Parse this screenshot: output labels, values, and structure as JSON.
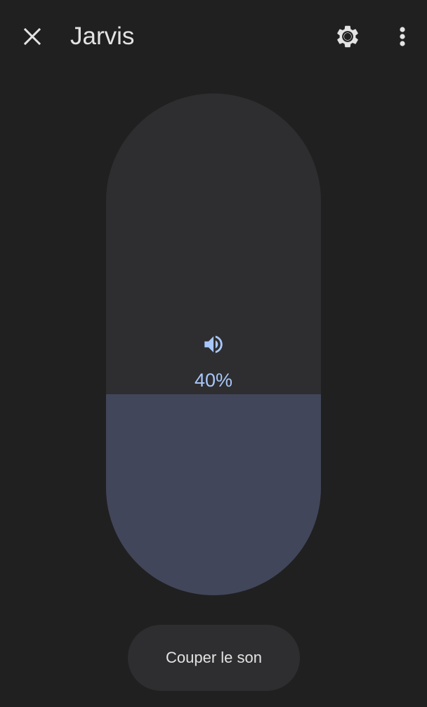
{
  "header": {
    "title": "Jarvis",
    "close_icon": "close-icon",
    "settings_icon": "gear-icon",
    "more_icon": "more-vert-icon"
  },
  "volume": {
    "level": 40,
    "label": "40%",
    "icon": "volume-up-icon"
  },
  "actions": {
    "mute_label": "Couper le son"
  },
  "colors": {
    "background": "#202021",
    "track": "#2e2e30",
    "fill": "#41465a",
    "accent": "#a8c7fa",
    "text": "#e3e3e3"
  }
}
